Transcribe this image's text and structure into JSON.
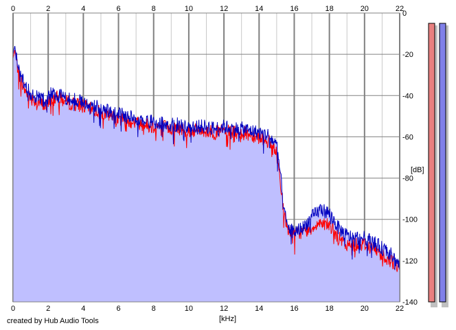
{
  "credit": "created by Hub Audio Tools",
  "colors": {
    "background": "#ffffff",
    "plot_background": "#ffffff",
    "fill": "#bfbfff",
    "channel_left": "#ff0000",
    "channel_right": "#0000c0",
    "major_grid": "#808080",
    "minor_grid": "#c8c8c8",
    "meter_left": "#e88080",
    "meter_right": "#8080e8"
  },
  "chart_data": {
    "type": "area",
    "title": "",
    "xlabel": "[kHz]",
    "ylabel": "[dB]",
    "xlim": [
      0,
      22
    ],
    "ylim": [
      -140,
      0
    ],
    "x_ticks": [
      "0",
      "2",
      "4",
      "6",
      "8",
      "10",
      "12",
      "14",
      "16",
      "18",
      "20",
      "22"
    ],
    "y_ticks": [
      "0",
      "-20",
      "-40",
      "-60",
      "-80",
      "-100",
      "-120",
      "-140"
    ],
    "grid": true,
    "legend": "none",
    "fill_level_db": -40,
    "series": [
      {
        "color_key": "channel_left",
        "x": [
          0.0,
          0.1,
          0.2,
          0.4,
          0.6,
          0.8,
          1.0,
          1.2,
          1.4,
          1.6,
          1.8,
          2.0,
          2.2,
          2.5,
          3.0,
          3.5,
          4.0,
          4.5,
          5.0,
          5.5,
          6.0,
          6.5,
          7.0,
          7.5,
          8.0,
          8.5,
          9.0,
          9.5,
          10.0,
          10.5,
          11.0,
          11.5,
          12.0,
          12.5,
          13.0,
          13.5,
          14.0,
          14.5,
          15.0,
          15.2,
          15.4,
          15.6,
          15.8,
          16.0,
          16.5,
          17.0,
          17.5,
          18.0,
          18.5,
          19.0,
          19.5,
          20.0,
          20.5,
          21.0,
          21.5,
          22.0
        ],
        "values": [
          -22,
          -18,
          -24,
          -31,
          -36,
          -39,
          -41,
          -42,
          -43,
          -44,
          -45,
          -44,
          -42,
          -41,
          -43,
          -44,
          -45,
          -47,
          -48,
          -50,
          -51,
          -52,
          -53,
          -54,
          -55,
          -55,
          -56,
          -56,
          -57,
          -57,
          -57,
          -58,
          -57,
          -58,
          -58,
          -59,
          -60,
          -62,
          -68,
          -80,
          -97,
          -104,
          -106,
          -107,
          -106,
          -104,
          -101,
          -103,
          -109,
          -113,
          -112,
          -112,
          -114,
          -117,
          -120,
          -124
        ]
      },
      {
        "color_key": "channel_right",
        "x": [
          0.0,
          0.1,
          0.2,
          0.4,
          0.6,
          0.8,
          1.0,
          1.2,
          1.4,
          1.6,
          1.8,
          2.0,
          2.2,
          2.5,
          3.0,
          3.5,
          4.0,
          4.5,
          5.0,
          5.5,
          6.0,
          6.5,
          7.0,
          7.5,
          8.0,
          8.5,
          9.0,
          9.5,
          10.0,
          10.5,
          11.0,
          11.5,
          12.0,
          12.5,
          13.0,
          13.5,
          14.0,
          14.5,
          15.0,
          15.2,
          15.4,
          15.6,
          15.8,
          16.0,
          16.5,
          17.0,
          17.5,
          18.0,
          18.5,
          19.0,
          19.5,
          20.0,
          20.5,
          21.0,
          21.5,
          22.0
        ],
        "values": [
          -20,
          -16,
          -22,
          -29,
          -34,
          -37,
          -39,
          -40,
          -41,
          -42,
          -42,
          -41,
          -39,
          -39,
          -41,
          -42,
          -43,
          -45,
          -46,
          -48,
          -49,
          -50,
          -51,
          -52,
          -53,
          -53,
          -54,
          -54,
          -55,
          -55,
          -55,
          -56,
          -55,
          -56,
          -56,
          -57,
          -58,
          -59,
          -64,
          -77,
          -95,
          -103,
          -105,
          -106,
          -104,
          -99,
          -95,
          -97,
          -104,
          -108,
          -109,
          -109,
          -111,
          -114,
          -117,
          -122
        ]
      }
    ],
    "meters": [
      {
        "channel": "left",
        "color_key": "meter_left"
      },
      {
        "channel": "right",
        "color_key": "meter_right"
      }
    ]
  }
}
